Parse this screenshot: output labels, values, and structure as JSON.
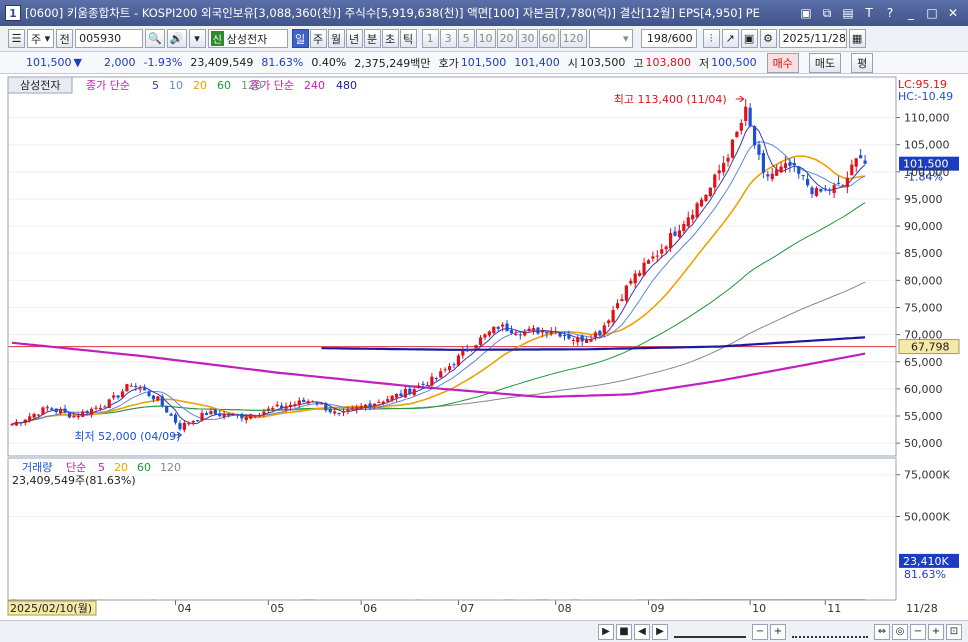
{
  "window": {
    "icon_label": "1",
    "title": "[0600] 키움종합차트 - KOSPI200 외국인보유[3,088,360(천)] 주식수[5,919,638(천)] 액면[100] 자본금[7,780(억)] 결산[12월] EPS[4,950] PE"
  },
  "toolbar": {
    "period_select": "주",
    "prev_label": "전",
    "stock_code": "005930",
    "stock_flag": "신",
    "stock_name": "삼성전자",
    "period_buttons": [
      "일",
      "주",
      "월",
      "년",
      "분",
      "초",
      "틱"
    ],
    "active_period": "일",
    "interval_buttons": [
      "1",
      "3",
      "5",
      "10",
      "20",
      "30",
      "60",
      "120"
    ],
    "bars_shown": "198",
    "bars_total": "/600",
    "date": "2025/11/28"
  },
  "quote": {
    "price": "101,500",
    "arrow": "▼",
    "change": "2,000",
    "change_pct": "-1.93%",
    "volume": "23,409,549",
    "vol_ratio": "81.63%",
    "turnover": "0.40%",
    "amount": "2,375,249백만",
    "bid_label": "호가",
    "bid": "101,500",
    "ask": "101,400",
    "open_label": "시",
    "open": "103,500",
    "high_label": "고",
    "high": "103,800",
    "low_label": "저",
    "low": "100,500",
    "buy_label": "매수",
    "sell_label": "매도",
    "eval_label": "평"
  },
  "colors": {
    "up": "#e0111b",
    "down": "#1a4fd6",
    "ma5": "#3a3ab0",
    "ma20": "#f0a000",
    "ma60": "#1a9a3a",
    "ma120": "#888888",
    "ma240": "#c020c0",
    "ma480": "#1a1aa0",
    "hline": "#e03040"
  },
  "price_pane": {
    "tab_label": "삼성전자",
    "legend_prefix": "종가 단순",
    "legend_ma": [
      "5",
      "10",
      "20",
      "60",
      "120"
    ],
    "legend2_prefix": "종가 단순",
    "legend2_ma": [
      "240",
      "480"
    ],
    "lc_label": "LC:95.19",
    "hc_label": "HC:-10.49",
    "current_price_tag": "101,500",
    "current_pct": "-1.84%",
    "hline_value_tag": "67,798",
    "max_annotation": "최고 113,400 (11/04)",
    "min_annotation": "최저 52,000 (04/09)",
    "y_ticks": [
      "110,000",
      "105,000",
      "100,000",
      "95,000",
      "90,000",
      "85,000",
      "80,000",
      "75,000",
      "70,000",
      "65,000",
      "60,000",
      "55,000",
      "50,000"
    ]
  },
  "volume_pane": {
    "legend_title": "거래량",
    "legend_prefix": "단순",
    "legend_ma": [
      "5",
      "20",
      "60",
      "120"
    ],
    "summary": "23,409,549주(81.63%)",
    "current_tag": "23,410K",
    "current_pct": "81.63%",
    "y_ticks": [
      "75,000K",
      "50,000K"
    ]
  },
  "x_axis": {
    "start_label": "2025/02/10(월)",
    "months": [
      "04",
      "05",
      "06",
      "07",
      "08",
      "09",
      "10",
      "11"
    ],
    "end_label": "11/28"
  },
  "chart_data": {
    "type": "candlestick",
    "title": "",
    "ylim": [
      48000,
      116000
    ],
    "volume_ylim": [
      0,
      85000
    ],
    "note": "daily OHLC approximated from screenshot, 2025/02/10 - 2025/11/28",
    "anchors": [
      {
        "i": 0,
        "c": 53500
      },
      {
        "i": 8,
        "c": 56500
      },
      {
        "i": 14,
        "c": 55000
      },
      {
        "i": 22,
        "c": 57500
      },
      {
        "i": 27,
        "c": 61000
      },
      {
        "i": 33,
        "c": 58000
      },
      {
        "i": 38,
        "c": 53000
      },
      {
        "i": 44,
        "c": 55500
      },
      {
        "i": 52,
        "c": 55000
      },
      {
        "i": 60,
        "c": 56500
      },
      {
        "i": 68,
        "c": 58000
      },
      {
        "i": 74,
        "c": 55000
      },
      {
        "i": 80,
        "c": 57000
      },
      {
        "i": 88,
        "c": 59000
      },
      {
        "i": 96,
        "c": 62000
      },
      {
        "i": 104,
        "c": 68000
      },
      {
        "i": 110,
        "c": 71500
      },
      {
        "i": 116,
        "c": 70500
      },
      {
        "i": 122,
        "c": 71000
      },
      {
        "i": 128,
        "c": 69000
      },
      {
        "i": 133,
        "c": 70500
      },
      {
        "i": 140,
        "c": 80000
      },
      {
        "i": 146,
        "c": 85000
      },
      {
        "i": 152,
        "c": 91000
      },
      {
        "i": 158,
        "c": 97000
      },
      {
        "i": 163,
        "c": 105000
      },
      {
        "i": 166,
        "c": 111000
      },
      {
        "i": 170,
        "c": 99000
      },
      {
        "i": 176,
        "c": 101000
      },
      {
        "i": 182,
        "c": 96000
      },
      {
        "i": 188,
        "c": 97500
      },
      {
        "i": 192,
        "c": 103500
      },
      {
        "i": 193,
        "c": 101500
      }
    ],
    "ma240_anchors": [
      [
        0,
        68500
      ],
      [
        30,
        66000
      ],
      [
        60,
        63000
      ],
      [
        90,
        60500
      ],
      [
        120,
        58500
      ],
      [
        140,
        59000
      ],
      [
        160,
        61500
      ],
      [
        180,
        64500
      ],
      [
        193,
        66500
      ]
    ],
    "ma480_anchors": [
      [
        70,
        67500
      ],
      [
        100,
        67200
      ],
      [
        130,
        67300
      ],
      [
        160,
        67800
      ],
      [
        193,
        69500
      ]
    ]
  }
}
